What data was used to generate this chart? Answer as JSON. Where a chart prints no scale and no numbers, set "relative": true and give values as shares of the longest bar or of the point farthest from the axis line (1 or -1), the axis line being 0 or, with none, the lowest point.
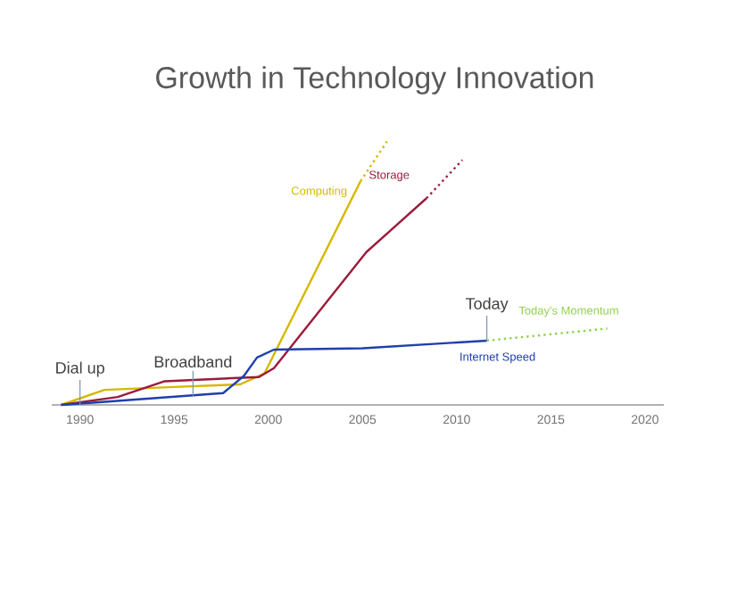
{
  "chart_data": {
    "type": "line",
    "title": "Growth in Technology Innovation",
    "relative": true,
    "xlim": [
      1988.5,
      2021
    ],
    "xticks": [
      1990,
      1995,
      2000,
      2005,
      2010,
      2015,
      2020
    ],
    "series": [
      {
        "name": "Computing",
        "color": "#d4b800",
        "x": [
          1989,
          1991.3,
          1995,
          1998.5,
          1999.8,
          2004.9
        ],
        "values": [
          0,
          0.057,
          0.068,
          0.078,
          0.12,
          0.85
        ]
      },
      {
        "color": "#d4b800",
        "line_style": "dotted",
        "x": [
          2004.9,
          2006.3
        ],
        "values": [
          0.85,
          1.0
        ]
      },
      {
        "name": "Storage",
        "color": "#9b1b3a",
        "x": [
          1989,
          1992,
          1994.5,
          1999.5,
          2000.3,
          2005.2,
          2008.4
        ],
        "values": [
          0,
          0.03,
          0.09,
          0.106,
          0.14,
          0.58,
          0.785
        ]
      },
      {
        "color": "#9b1b3a",
        "line_style": "dotted",
        "x": [
          2008.4,
          2010.3
        ],
        "values": [
          0.785,
          0.93
        ]
      },
      {
        "name": "Internet Speed",
        "color": "#1f3fae",
        "x": [
          1989,
          1991,
          1997.6,
          1998.7,
          1999.4,
          2000.3,
          2005,
          2011.6
        ],
        "values": [
          0,
          0.01,
          0.045,
          0.11,
          0.18,
          0.21,
          0.215,
          0.244
        ]
      },
      {
        "name": "Today's Momentum",
        "color": "#8fd14f",
        "line_style": "dotted",
        "x": [
          2011.6,
          2018
        ],
        "values": [
          0.244,
          0.29
        ]
      }
    ],
    "annotations": [
      {
        "text": "Dial up",
        "x": 1990,
        "y": 0
      },
      {
        "text": "Broadband",
        "x": 1996,
        "y": 0.035
      },
      {
        "text": "Today",
        "x": 2011.6,
        "y": 0.244
      }
    ],
    "grid": false,
    "legend": false,
    "marker": "none"
  }
}
